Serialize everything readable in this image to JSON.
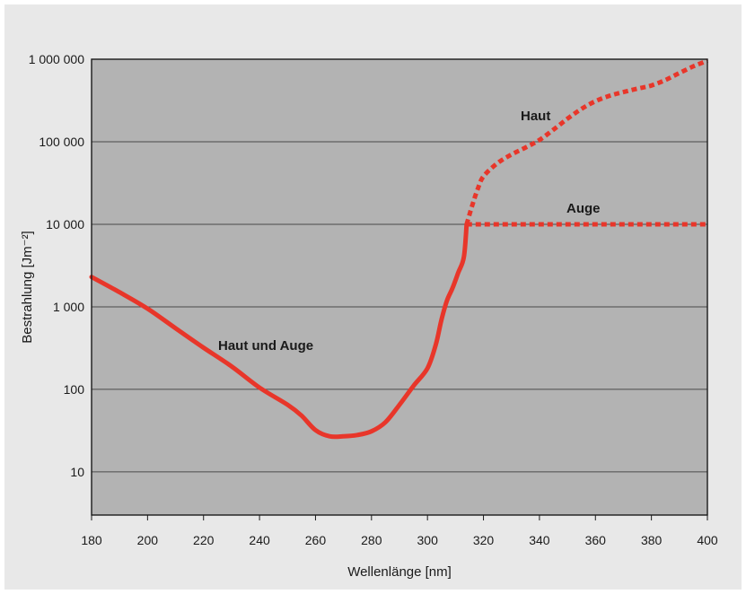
{
  "colors": {
    "panel_background": "#e8e8e8",
    "plot_background": "#b3b3b3",
    "gridline": "#4a4a4a",
    "axis_frame": "#1a1a1a",
    "curve": "#e8362a",
    "text": "#1a1a1a"
  },
  "chart_data": {
    "type": "line",
    "xlabel": "Wellenlänge [nm]",
    "ylabel": "Bestrahlung [Jm⁻²]",
    "y_scale": "log",
    "xlim": [
      180,
      400
    ],
    "ylim": [
      3,
      1000000
    ],
    "grid": true,
    "x_ticks": [
      180,
      200,
      220,
      240,
      260,
      280,
      300,
      320,
      340,
      360,
      380,
      400
    ],
    "x_tick_labels": [
      "180",
      "200",
      "220",
      "240",
      "260",
      "280",
      "300",
      "320",
      "340",
      "360",
      "380",
      "400"
    ],
    "y_ticks": [
      10,
      100,
      1000,
      10000,
      100000,
      1000000
    ],
    "y_tick_labels": [
      "10",
      "100",
      "1 000",
      "10 000",
      "100 000",
      "1 000 000"
    ],
    "series": [
      {
        "name": "Haut und Auge",
        "style": "solid",
        "x": [
          180,
          190,
          200,
          210,
          220,
          230,
          240,
          250,
          255,
          260,
          265,
          270,
          275,
          280,
          285,
          290,
          295,
          300,
          303,
          305,
          307,
          309,
          311,
          313,
          314
        ],
        "y": [
          2300,
          1500,
          950,
          550,
          320,
          190,
          105,
          65,
          48,
          32,
          27,
          27,
          28,
          31,
          40,
          65,
          110,
          180,
          350,
          700,
          1200,
          1700,
          2600,
          4000,
          10000
        ]
      },
      {
        "name": "Haut",
        "style": "dotted",
        "x": [
          314,
          316,
          318,
          320,
          325,
          330,
          335,
          340,
          345,
          350,
          355,
          360,
          365,
          370,
          375,
          380,
          385,
          390,
          395,
          400
        ],
        "y": [
          10000,
          17000,
          27000,
          38000,
          55000,
          70000,
          85000,
          105000,
          140000,
          190000,
          250000,
          310000,
          360000,
          400000,
          440000,
          480000,
          560000,
          680000,
          820000,
          960000
        ]
      },
      {
        "name": "Auge",
        "style": "dotted",
        "x": [
          314,
          400
        ],
        "y": [
          10000,
          10000
        ]
      }
    ],
    "annotations": [
      "Haut und Auge",
      "Haut",
      "Auge"
    ]
  }
}
